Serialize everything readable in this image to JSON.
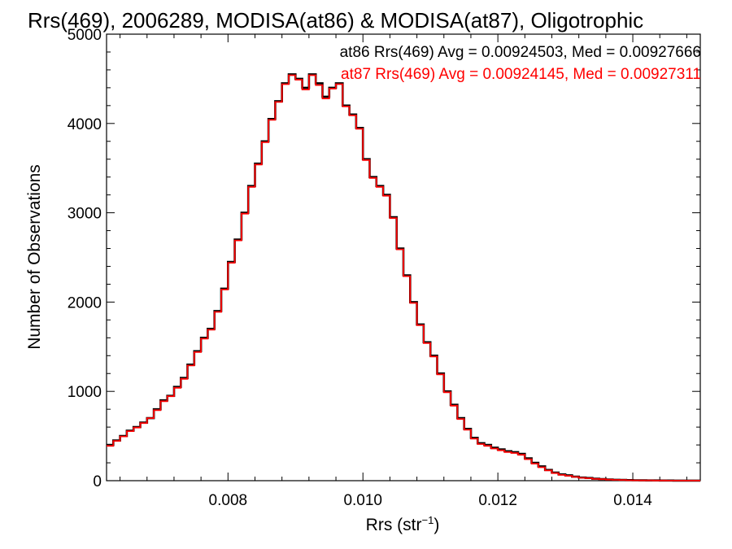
{
  "chart_data": {
    "type": "line",
    "title": "Rrs(469), 2006289, MODISA(at86) & MODISA(at87), Oligotrophic",
    "xlabel": "Rrs (str",
    "xlabel_sup": "−1",
    "xlabel_close": ")",
    "ylabel": "Number of Observations",
    "xlim": [
      0.0062,
      0.015
    ],
    "ylim": [
      0,
      5000
    ],
    "x_ticks": [
      0.008,
      0.01,
      0.012,
      0.014
    ],
    "x_tick_labels": [
      "0.008",
      "0.010",
      "0.012",
      "0.014"
    ],
    "y_ticks": [
      0,
      1000,
      2000,
      3000,
      4000,
      5000
    ],
    "y_tick_labels": [
      "0",
      "1000",
      "2000",
      "3000",
      "4000",
      "5000"
    ],
    "grid": false,
    "step": true,
    "series": [
      {
        "legend": "at86 Rrs(469) Avg = 0.00924503, Med = 0.00927666",
        "color": "#000000",
        "x": [
          0.0062,
          0.0063,
          0.0064,
          0.0065,
          0.0066,
          0.0067,
          0.0068,
          0.0069,
          0.007,
          0.0071,
          0.0072,
          0.0073,
          0.0074,
          0.0075,
          0.0076,
          0.0077,
          0.0078,
          0.0079,
          0.008,
          0.0081,
          0.0082,
          0.0083,
          0.0084,
          0.0085,
          0.0086,
          0.0087,
          0.0088,
          0.0089,
          0.009,
          0.0091,
          0.0092,
          0.0093,
          0.0094,
          0.0095,
          0.0096,
          0.0097,
          0.0098,
          0.0099,
          0.01,
          0.0101,
          0.0102,
          0.0103,
          0.0104,
          0.0105,
          0.0106,
          0.0107,
          0.0108,
          0.0109,
          0.011,
          0.0111,
          0.0112,
          0.0113,
          0.0114,
          0.0115,
          0.0116,
          0.0117,
          0.0118,
          0.0119,
          0.012,
          0.0121,
          0.0122,
          0.0123,
          0.0124,
          0.0125,
          0.0126,
          0.0127,
          0.0128,
          0.0129,
          0.013,
          0.0131,
          0.0132,
          0.0133,
          0.0134,
          0.0135,
          0.0136,
          0.0137,
          0.0138,
          0.0139,
          0.014,
          0.0141,
          0.0142,
          0.0143,
          0.0144,
          0.0145,
          0.0146,
          0.0147,
          0.0148,
          0.0149
        ],
        "y": [
          400,
          450,
          500,
          560,
          600,
          650,
          700,
          800,
          900,
          950,
          1050,
          1150,
          1300,
          1450,
          1600,
          1700,
          1900,
          2150,
          2450,
          2700,
          3000,
          3300,
          3550,
          3800,
          4050,
          4250,
          4450,
          4550,
          4500,
          4400,
          4550,
          4450,
          4300,
          4400,
          4450,
          4200,
          4100,
          3950,
          3600,
          3400,
          3300,
          3200,
          2950,
          2600,
          2300,
          2000,
          1750,
          1550,
          1400,
          1200,
          1000,
          850,
          700,
          580,
          480,
          420,
          400,
          370,
          350,
          330,
          320,
          300,
          250,
          200,
          160,
          120,
          90,
          70,
          60,
          45,
          35,
          30,
          22,
          18,
          14,
          10,
          8,
          6,
          5,
          4,
          3,
          3,
          2,
          2,
          1,
          1,
          1,
          1
        ]
      },
      {
        "legend": "at87 Rrs(469) Avg = 0.00924145, Med = 0.00927311",
        "color": "#ff0000",
        "x": [
          0.0062,
          0.0063,
          0.0064,
          0.0065,
          0.0066,
          0.0067,
          0.0068,
          0.0069,
          0.007,
          0.0071,
          0.0072,
          0.0073,
          0.0074,
          0.0075,
          0.0076,
          0.0077,
          0.0078,
          0.0079,
          0.008,
          0.0081,
          0.0082,
          0.0083,
          0.0084,
          0.0085,
          0.0086,
          0.0087,
          0.0088,
          0.0089,
          0.009,
          0.0091,
          0.0092,
          0.0093,
          0.0094,
          0.0095,
          0.0096,
          0.0097,
          0.0098,
          0.0099,
          0.01,
          0.0101,
          0.0102,
          0.0103,
          0.0104,
          0.0105,
          0.0106,
          0.0107,
          0.0108,
          0.0109,
          0.011,
          0.0111,
          0.0112,
          0.0113,
          0.0114,
          0.0115,
          0.0116,
          0.0117,
          0.0118,
          0.0119,
          0.012,
          0.0121,
          0.0122,
          0.0123,
          0.0124,
          0.0125,
          0.0126,
          0.0127,
          0.0128,
          0.0129,
          0.013,
          0.0131,
          0.0132,
          0.0133,
          0.0134,
          0.0135,
          0.0136,
          0.0137,
          0.0138,
          0.0139,
          0.014,
          0.0141,
          0.0142,
          0.0143,
          0.0144,
          0.0145,
          0.0146,
          0.0147,
          0.0148,
          0.0149
        ],
        "y": [
          390,
          445,
          495,
          555,
          595,
          645,
          700,
          790,
          890,
          945,
          1040,
          1140,
          1290,
          1440,
          1590,
          1690,
          1890,
          2140,
          2440,
          2690,
          2990,
          3290,
          3540,
          3790,
          4040,
          4240,
          4440,
          4540,
          4490,
          4380,
          4540,
          4430,
          4280,
          4390,
          4440,
          4190,
          4090,
          3940,
          3590,
          3390,
          3290,
          3190,
          2940,
          2590,
          2290,
          1990,
          1740,
          1540,
          1390,
          1190,
          990,
          840,
          690,
          570,
          470,
          410,
          390,
          360,
          340,
          320,
          310,
          290,
          240,
          190,
          150,
          115,
          85,
          65,
          55,
          42,
          32,
          27,
          20,
          16,
          12,
          9,
          7,
          5,
          4,
          3,
          3,
          2,
          2,
          1,
          1,
          1,
          1,
          1
        ]
      }
    ]
  }
}
